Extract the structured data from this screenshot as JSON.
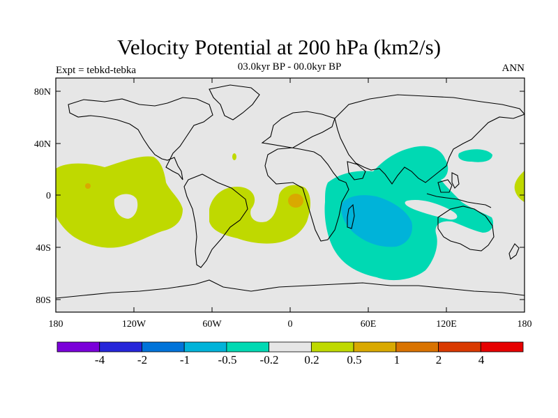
{
  "header": {
    "title": "Velocity Potential at 200 hPa (km2/s)",
    "subtitle": "03.0kyr BP - 00.0kyr BP",
    "left_label": "Expt = tebkd-tebka",
    "right_label": "ANN"
  },
  "map": {
    "projection": "cylindrical equidistant",
    "lon_ticks": [
      "180",
      "120W",
      "60W",
      "0",
      "60E",
      "120E",
      "180"
    ],
    "lat_ticks": [
      "80N",
      "40N",
      "0",
      "40S",
      "80S"
    ],
    "background_color": "#e6e6e6",
    "field": [
      {
        "name": "pacific-positive-region",
        "level": "0.2 to 0.5",
        "color": "#bfd900"
      },
      {
        "name": "atlantic-positive-region",
        "level": "0.2 to 0.5",
        "color": "#bfd900"
      },
      {
        "name": "gulf-of-guinea-max",
        "level": "0.5 to 1",
        "color": "#d9a900"
      },
      {
        "name": "indian-ocean-negative-region",
        "level": "-0.5 to -0.2",
        "color": "#00d9b3"
      },
      {
        "name": "indian-ocean-minimum",
        "level": "-1 to -0.5",
        "color": "#00b3d9"
      }
    ]
  },
  "colorbar": {
    "colors": [
      "#7a00d9",
      "#2626d9",
      "#0073d9",
      "#00b3d9",
      "#00d9b3",
      "#e6e6e6",
      "#bfd900",
      "#d9a900",
      "#d97300",
      "#d93a00",
      "#e60000"
    ],
    "labels": [
      "-4",
      "-2",
      "-1",
      "-0.5",
      "-0.2",
      "0.2",
      "0.5",
      "1",
      "2",
      "4"
    ]
  }
}
